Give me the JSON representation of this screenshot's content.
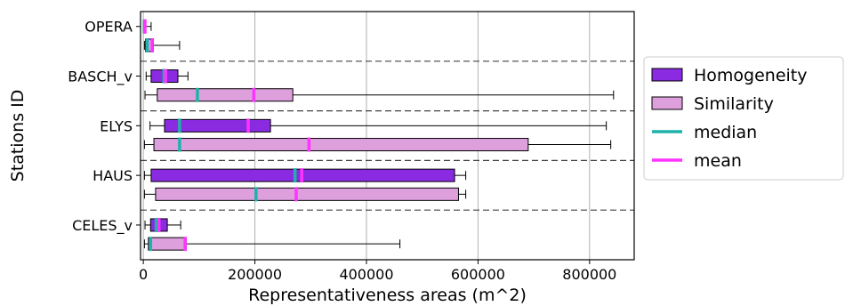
{
  "colors": {
    "homogeneity": "#8a2be2",
    "similarity": "#dda0dd",
    "median": "#20b2aa",
    "mean": "#ff33ff",
    "grid": "#b0b0b0",
    "separator": "#444444"
  },
  "chart_data": {
    "type": "horizontal-boxplot",
    "xlabel": "Representativeness areas (m^2)",
    "ylabel": "Stations ID",
    "xlim": [
      -5000,
      880000
    ],
    "x_ticks": [
      0,
      200000,
      400000,
      600000,
      800000
    ],
    "x_tick_labels": [
      "0",
      "200000",
      "400000",
      "600000",
      "800000"
    ],
    "grid": "vertical",
    "legend_position": "right",
    "legend": [
      {
        "key": "homogeneity",
        "label": "Homogeneity",
        "kind": "box"
      },
      {
        "key": "similarity",
        "label": "Similarity",
        "kind": "box"
      },
      {
        "key": "median",
        "label": "median",
        "kind": "line"
      },
      {
        "key": "mean",
        "label": "mean",
        "kind": "line"
      }
    ],
    "stations": [
      {
        "id": "OPERA",
        "homogeneity": {
          "whisker_low": 0,
          "q1": 0,
          "median": 2000,
          "q3": 3000,
          "whisker_high": 14000,
          "mean": 3000
        },
        "similarity": {
          "whisker_low": 2000,
          "q1": 4000,
          "median": 7000,
          "q3": 18000,
          "whisker_high": 65000,
          "mean": 16000
        }
      },
      {
        "id": "BASCH_v",
        "homogeneity": {
          "whisker_low": 5000,
          "q1": 14000,
          "median": 37000,
          "q3": 62000,
          "whisker_high": 80000,
          "mean": 40000
        },
        "similarity": {
          "whisker_low": 3000,
          "q1": 25000,
          "median": 97000,
          "q3": 268000,
          "whisker_high": 843000,
          "mean": 198000
        }
      },
      {
        "id": "ELYS",
        "homogeneity": {
          "whisker_low": 12000,
          "q1": 38000,
          "median": 65000,
          "q3": 228000,
          "whisker_high": 830000,
          "mean": 188000
        },
        "similarity": {
          "whisker_low": 2000,
          "q1": 19000,
          "median": 65000,
          "q3": 690000,
          "whisker_high": 838000,
          "mean": 297000
        }
      },
      {
        "id": "HAUS",
        "homogeneity": {
          "whisker_low": 2000,
          "q1": 14000,
          "median": 272000,
          "q3": 558000,
          "whisker_high": 578000,
          "mean": 284000
        },
        "similarity": {
          "whisker_low": 2000,
          "q1": 22000,
          "median": 202000,
          "q3": 565000,
          "whisker_high": 578000,
          "mean": 274000
        }
      },
      {
        "id": "CELES_v",
        "homogeneity": {
          "whisker_low": 3000,
          "q1": 13000,
          "median": 23000,
          "q3": 43000,
          "whisker_high": 67000,
          "mean": 28000
        },
        "similarity": {
          "whisker_low": 2000,
          "q1": 9000,
          "median": 13000,
          "q3": 77000,
          "whisker_high": 460000,
          "mean": 75000
        }
      }
    ]
  }
}
